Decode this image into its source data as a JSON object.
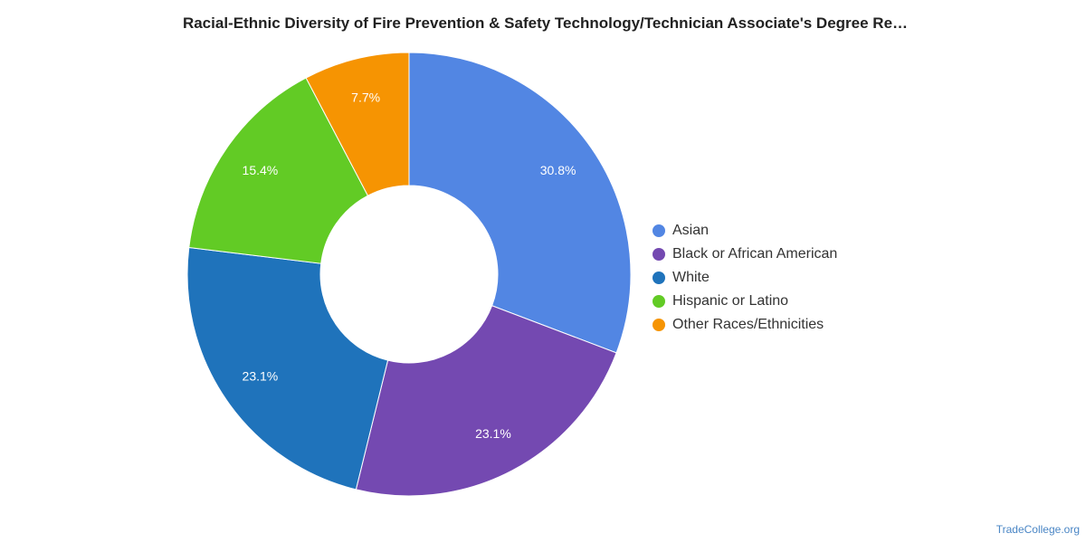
{
  "chart_data": {
    "type": "pie",
    "title": "Racial-Ethnic Diversity of Fire Prevention & Safety Technology/Technician Associate's Degree Re…",
    "donut": true,
    "legend_position": "right",
    "slices": [
      {
        "name": "Asian",
        "value": 30.8,
        "label": "30.8%",
        "color": "#5286e3"
      },
      {
        "name": "Black or African American",
        "value": 23.1,
        "label": "23.1%",
        "color": "#7449b1"
      },
      {
        "name": "White",
        "value": 23.1,
        "label": "23.1%",
        "color": "#1f73bb"
      },
      {
        "name": "Hispanic or Latino",
        "value": 15.4,
        "label": "15.4%",
        "color": "#62cb25"
      },
      {
        "name": "Other Races/Ethnicities",
        "value": 7.7,
        "label": "7.7%",
        "color": "#f69402"
      }
    ]
  },
  "footer": {
    "source": "TradeCollege.org"
  }
}
